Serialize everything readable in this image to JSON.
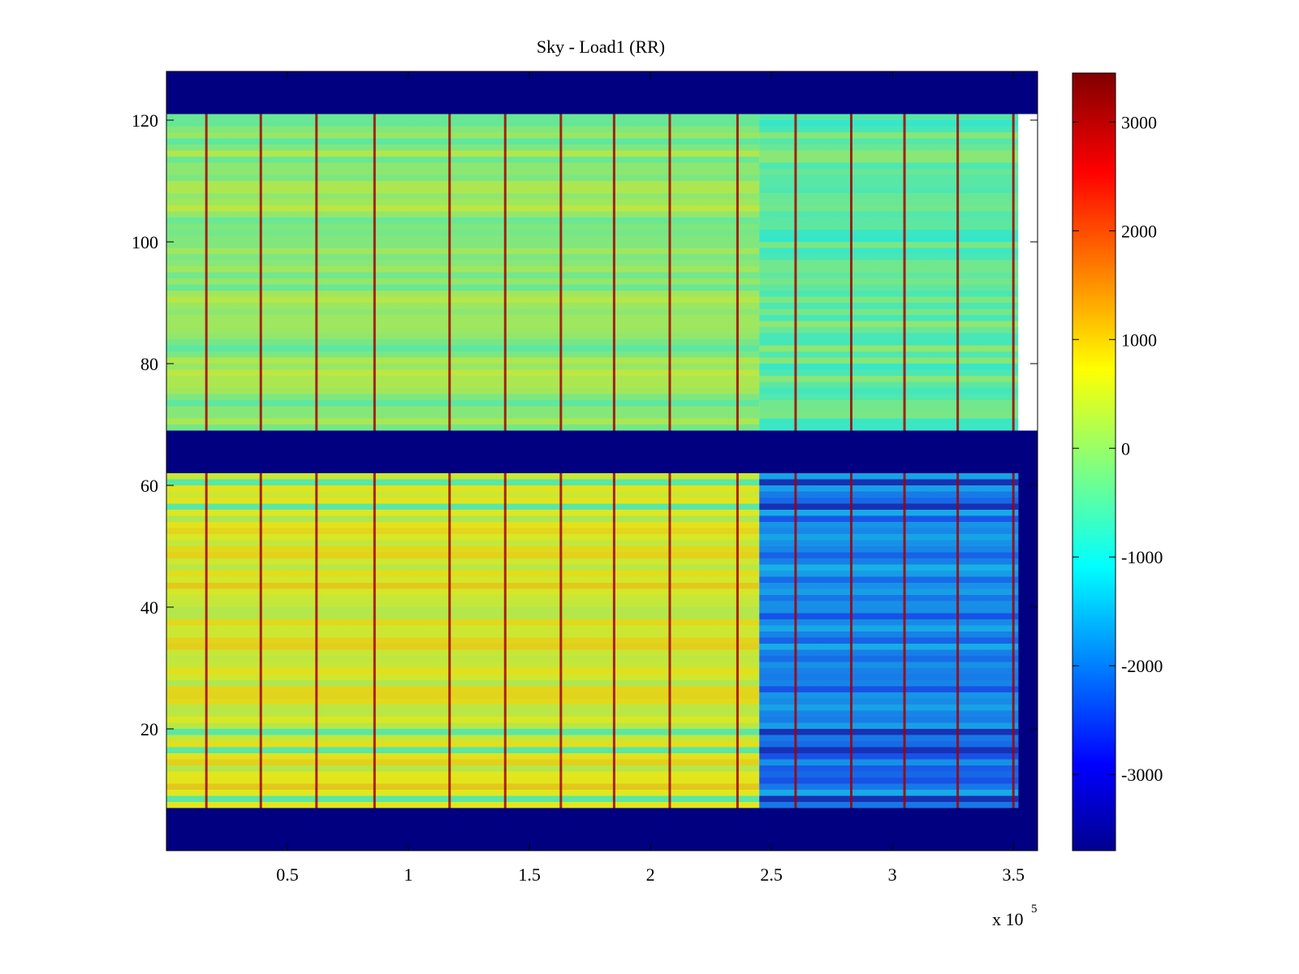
{
  "chart_data": {
    "type": "heatmap",
    "title": "Sky - Load1 (RR)",
    "xlabel": "",
    "ylabel": "",
    "x_exponent_label": {
      "base": "x 10",
      "exp": "5"
    },
    "xlim": [
      0,
      3.6
    ],
    "ylim": [
      0,
      128
    ],
    "x_scale_factor": 100000,
    "x_ticks": [
      0.5,
      1,
      1.5,
      2,
      2.5,
      3,
      3.5
    ],
    "x_tick_labels": [
      "0.5",
      "1",
      "1.5",
      "2",
      "2.5",
      "3",
      "3.5"
    ],
    "y_ticks": [
      20,
      40,
      60,
      80,
      100,
      120
    ],
    "y_tick_labels": [
      "20",
      "40",
      "60",
      "80",
      "100",
      "120"
    ],
    "colormap": "jet",
    "clim": [
      -3700,
      3450
    ],
    "colorbar_ticks": [
      3000,
      2000,
      1000,
      0,
      -1000,
      -2000,
      -3000
    ],
    "colorbar_tick_labels": [
      "3000",
      "2000",
      "1000",
      "0",
      "-1000",
      "-2000",
      "-3000"
    ],
    "colors": {
      "flagged_value_color": "#00008f",
      "background": "#ffffff",
      "axes_color": "#000000"
    },
    "regions": [
      {
        "rows": [
          0,
          7
        ],
        "cols": [
          0,
          3.6
        ],
        "value": -3700,
        "note": "flagged (no data)"
      },
      {
        "rows": [
          62,
          69
        ],
        "cols": [
          0,
          3.6
        ],
        "value": -3700,
        "note": "flagged (no data)"
      },
      {
        "rows": [
          121,
          128
        ],
        "cols": [
          0,
          3.6
        ],
        "value": -3700,
        "note": "flagged (no data)"
      },
      {
        "rows": [
          7,
          62
        ],
        "cols": [
          3.52,
          3.6
        ],
        "value": -3700,
        "note": "flagged (no data)"
      },
      {
        "rows": [
          7,
          62
        ],
        "cols": [
          0,
          2.45
        ],
        "value": 600,
        "note": "lower band, typical level"
      },
      {
        "rows": [
          7,
          62
        ],
        "cols": [
          2.45,
          3.52
        ],
        "value": -1900,
        "note": "lower band, typical level"
      },
      {
        "rows": [
          69,
          121
        ],
        "cols": [
          0,
          2.45
        ],
        "value": 0,
        "note": "upper band, typical level"
      },
      {
        "rows": [
          69,
          121
        ],
        "cols": [
          2.45,
          3.52
        ],
        "value": -400,
        "note": "upper band, typical level"
      }
    ],
    "spike_columns_x": [
      0.165,
      0.39,
      0.62,
      0.86,
      1.17,
      1.4,
      1.63,
      1.85,
      2.08,
      2.36,
      2.6,
      2.83,
      3.05,
      3.27,
      3.5
    ],
    "spike_value": 3200,
    "low_rows_lower_band": [
      8,
      16,
      19,
      56,
      60
    ],
    "low_row_value_right": -3400
  }
}
